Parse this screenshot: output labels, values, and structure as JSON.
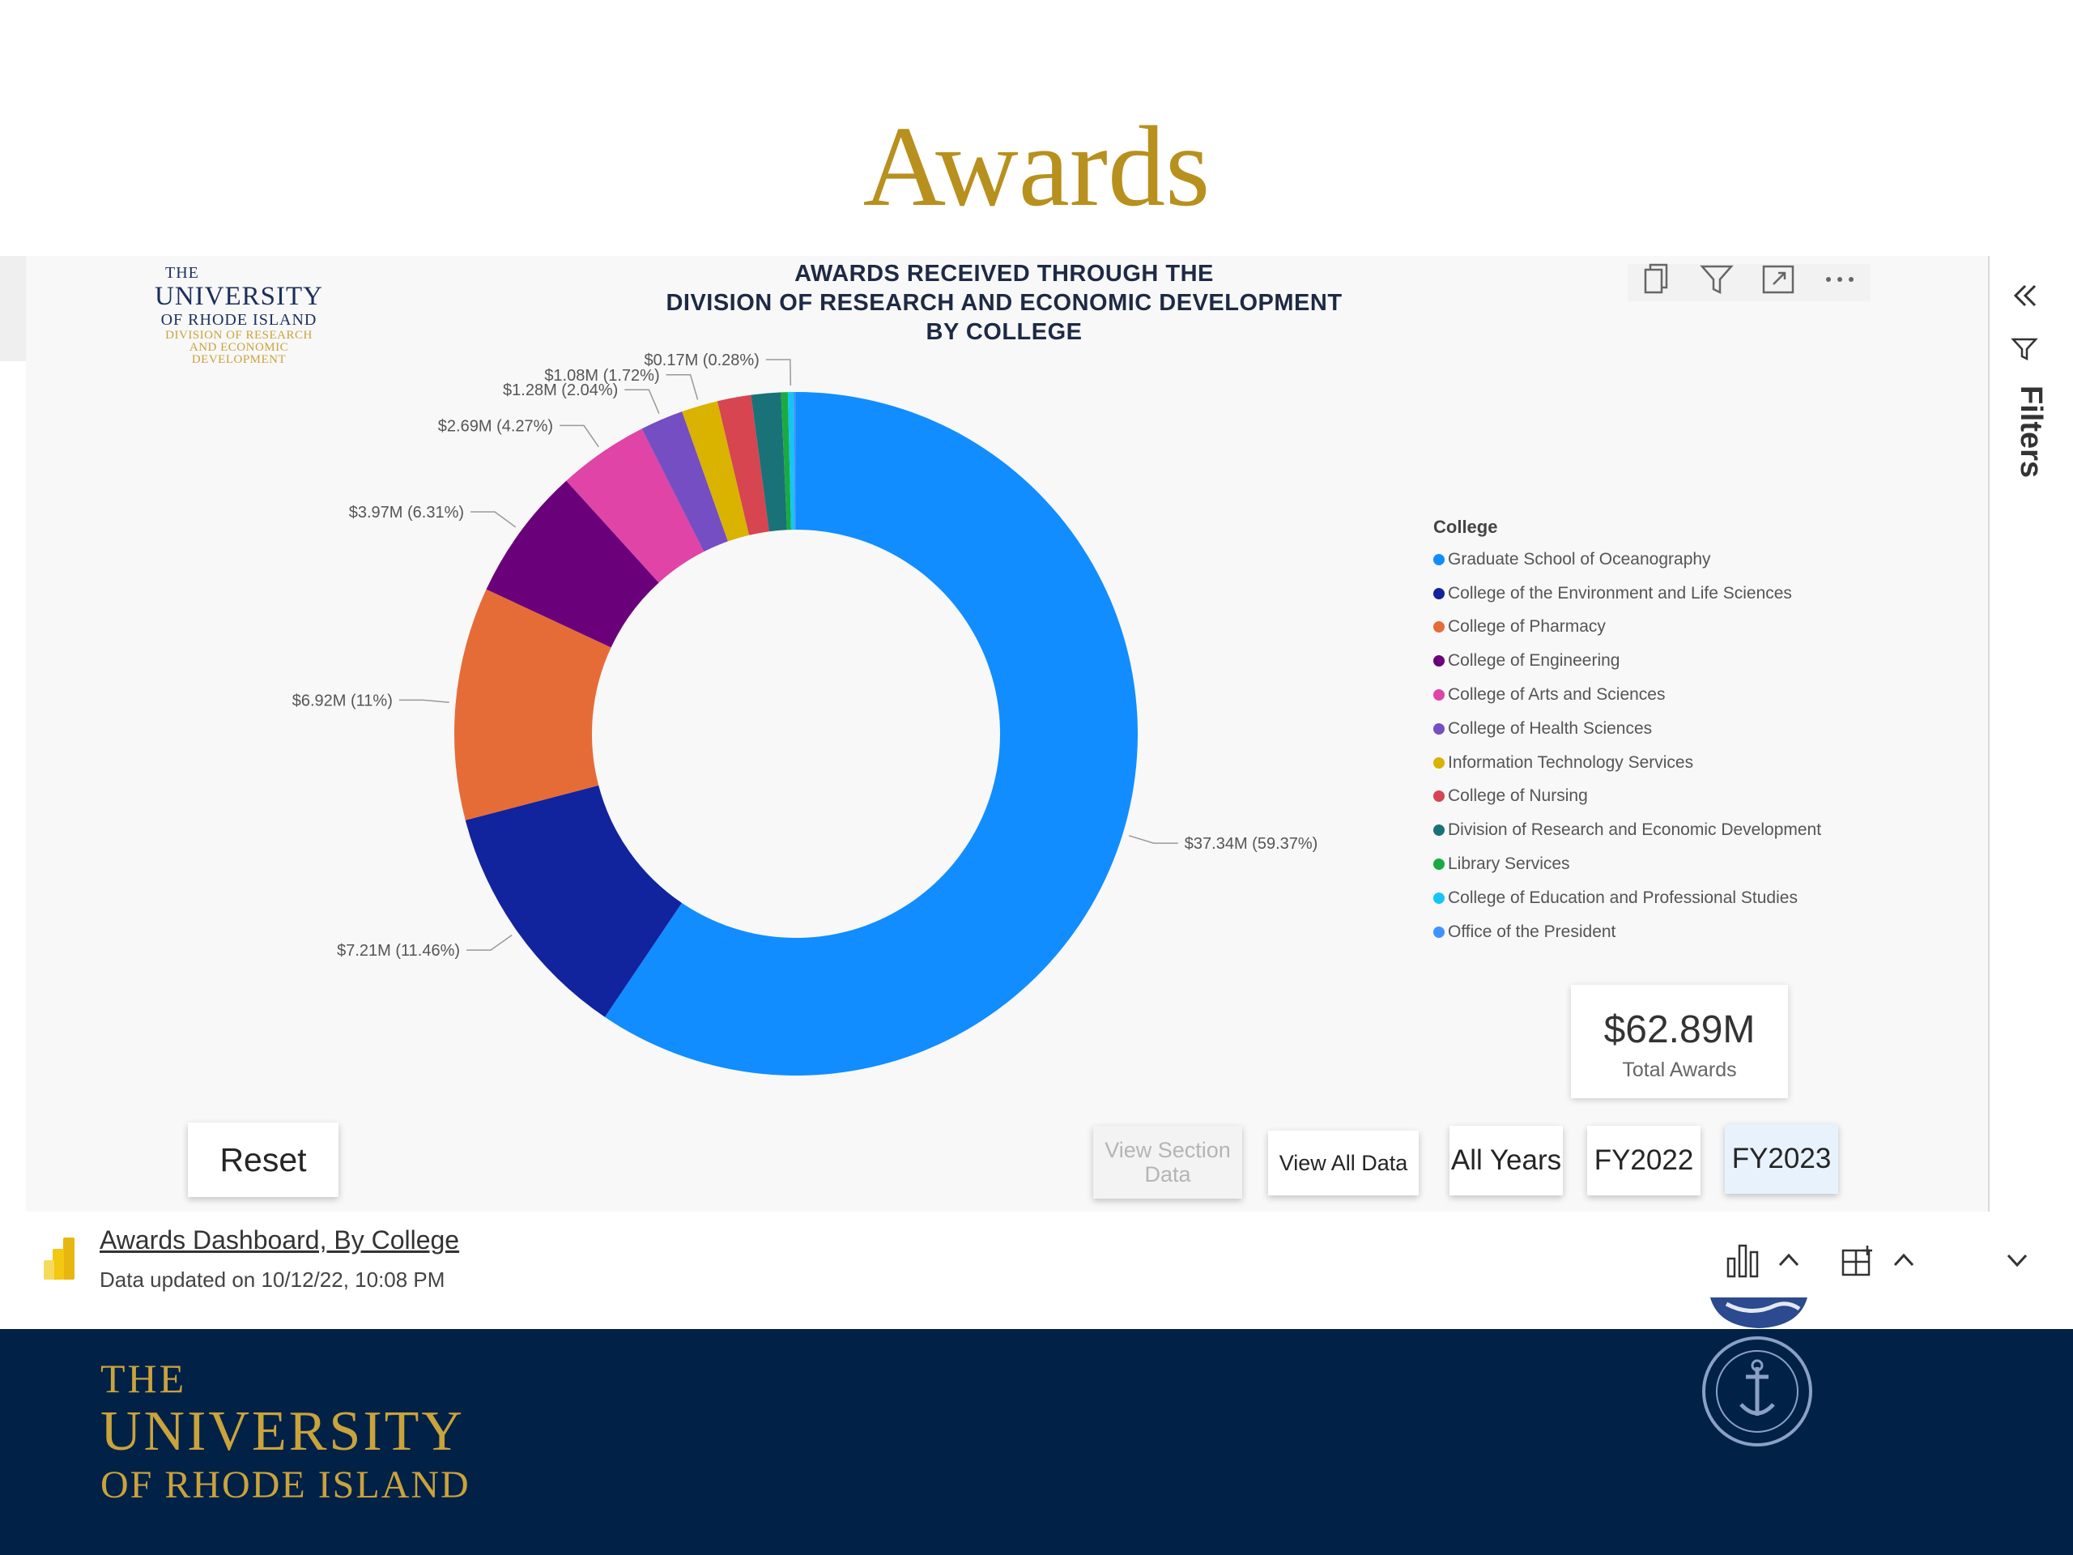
{
  "slide": {
    "title": "Awards"
  },
  "logo": {
    "line1": "THE",
    "line2": "UNIVERSITY",
    "line3": "OF RHODE ISLAND",
    "line4": "DIVISION OF RESEARCH",
    "line5": "AND ECONOMIC",
    "line6": "DEVELOPMENT"
  },
  "chart_title": {
    "line1": "AWARDS RECEIVED THROUGH THE",
    "line2": "DIVISION OF RESEARCH AND ECONOMIC DEVELOPMENT",
    "line3": "BY COLLEGE"
  },
  "visual_header": {
    "icons": [
      "copy-icon",
      "filter-icon",
      "focus-mode-icon",
      "more-options-icon"
    ]
  },
  "chart_data": {
    "type": "donut",
    "legend_title": "College",
    "legend_position": "right",
    "series": [
      {
        "name": "Graduate School of Oceanography",
        "value": 37.34,
        "pct": 59.37,
        "label": "$37.34M (59.37%)",
        "color": "#118DFF"
      },
      {
        "name": "College of the Environment and Life Sciences",
        "value": 7.21,
        "pct": 11.46,
        "label": "$7.21M (11.46%)",
        "color": "#12239E"
      },
      {
        "name": "College of Pharmacy",
        "value": 6.92,
        "pct": 11,
        "label": "$6.92M (11%)",
        "color": "#E66C37"
      },
      {
        "name": "College of Engineering",
        "value": 3.97,
        "pct": 6.31,
        "label": "$3.97M (6.31%)",
        "color": "#6B007B"
      },
      {
        "name": "College of Arts and Sciences",
        "value": 2.69,
        "pct": 4.27,
        "label": "$2.69M (4.27%)",
        "color": "#E044A7"
      },
      {
        "name": "College of Health Sciences",
        "value": 1.28,
        "pct": 2.04,
        "label": "$1.28M (2.04%)",
        "color": "#744EC2"
      },
      {
        "name": "Information Technology Services",
        "value": 1.08,
        "pct": 1.72,
        "label": "$1.08M (1.72%)",
        "color": "#D9B300"
      },
      {
        "name": "College of Nursing",
        "value": 1.0,
        "pct": 1.6,
        "label": "",
        "color": "#D64550"
      },
      {
        "name": "Division of Research and Economic Development",
        "value": 0.88,
        "pct": 1.4,
        "label": "",
        "color": "#197278"
      },
      {
        "name": "Library Services",
        "value": 0.2,
        "pct": 0.32,
        "label": "",
        "color": "#1AAB40"
      },
      {
        "name": "College of Education and Professional Studies",
        "value": 0.17,
        "pct": 0.28,
        "label": "$0.17M (0.28%)",
        "color": "#15C6F4"
      },
      {
        "name": "Office of the President",
        "value": 0.07,
        "pct": 0.11,
        "label": "",
        "color": "#4092FF"
      }
    ]
  },
  "kpi": {
    "value": "$62.89M",
    "label": "Total Awards"
  },
  "buttons": {
    "reset": "Reset",
    "view_section_1": "View Section",
    "view_section_2": "Data",
    "view_all": "View All Data",
    "all_years": "All Years",
    "fy2022": "FY2022",
    "fy2023": "FY2023"
  },
  "filters_pane": {
    "label": "Filters"
  },
  "footer": {
    "report_name": "Awards Dashboard, By College",
    "updated": "Data updated on 10/12/22, 10:08 PM"
  },
  "bottom_logo": {
    "line1": "THE",
    "line2": "UNIVERSITY",
    "line3": "OF RHODE ISLAND"
  }
}
